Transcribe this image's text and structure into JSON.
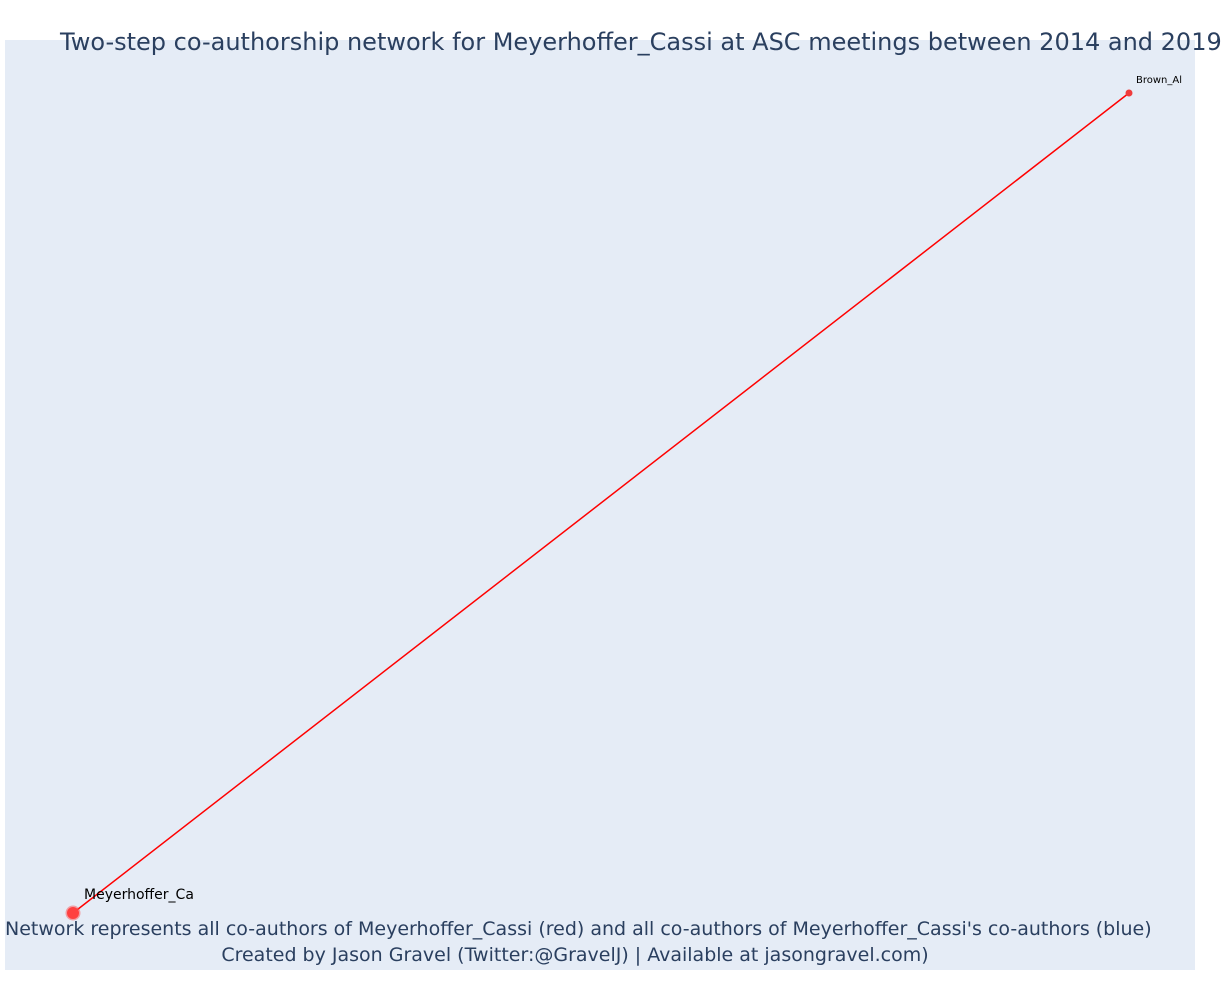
{
  "title": "Two-step co-authorship network for Meyerhoffer_Cassi at ASC meetings between 2014 and 2019",
  "footer": {
    "line1": "Network represents all co-authors of Meyerhoffer_Cassi (red) and all co-authors of Meyerhoffer_Cassi's co-authors (blue)",
    "line2": "Created by Jason Gravel (Twitter:@GravelJ) | Available at jasongravel.com)"
  },
  "network": {
    "nodes": [
      {
        "id": "Meyerhoffer_Ca",
        "label": "Meyerhoffer_Ca",
        "color": "#ff4040",
        "role": "focal"
      },
      {
        "id": "Brown_Al",
        "label": "Brown_Al",
        "color": "#ef3b3b",
        "role": "co-author"
      }
    ],
    "edges": [
      {
        "source": "Meyerhoffer_Ca",
        "target": "Brown_Al",
        "color": "#ff0000"
      }
    ]
  }
}
